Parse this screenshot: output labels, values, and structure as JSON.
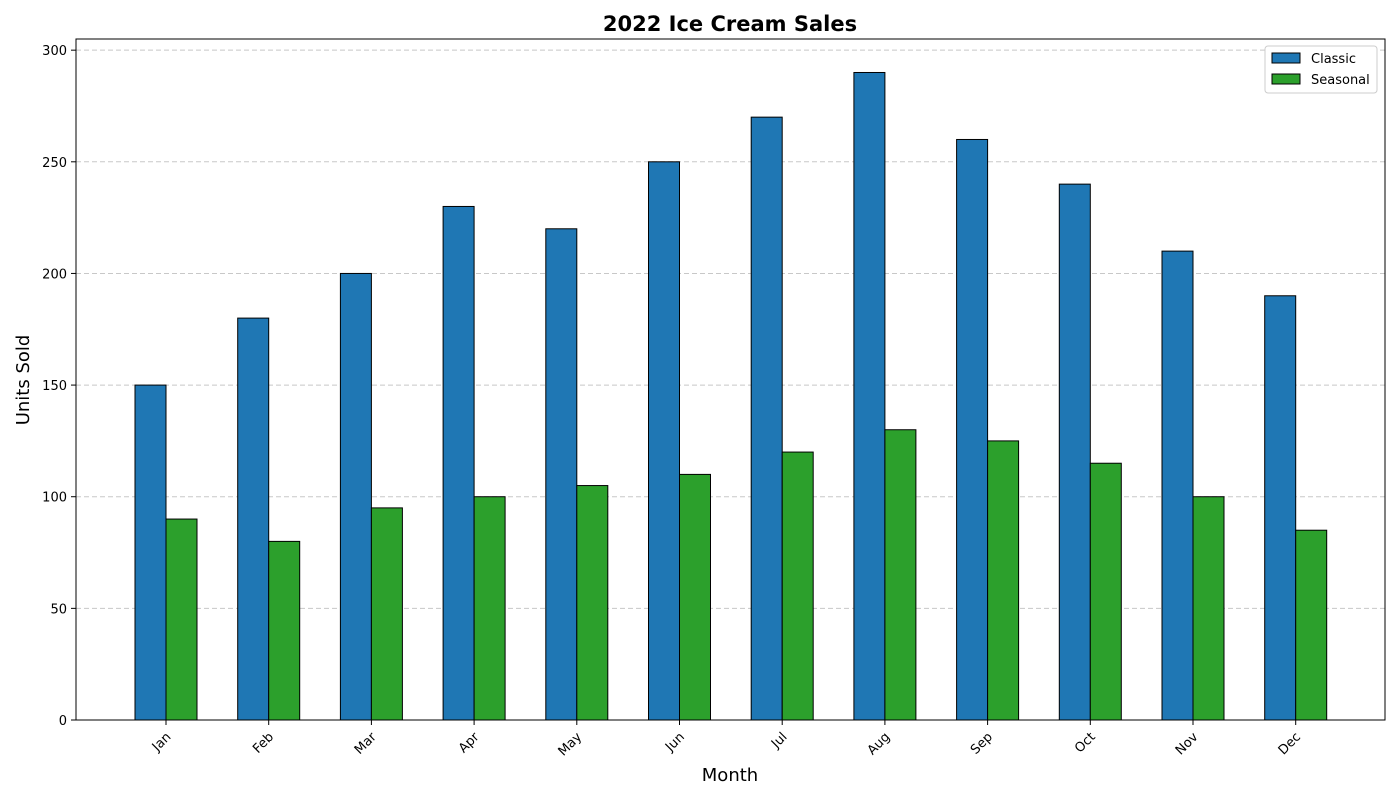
{
  "chart_data": {
    "type": "bar",
    "title": "2022 Ice Cream Sales",
    "xlabel": "Month",
    "ylabel": "Units Sold",
    "categories": [
      "Jan",
      "Feb",
      "Mar",
      "Apr",
      "May",
      "Jun",
      "Jul",
      "Aug",
      "Sep",
      "Oct",
      "Nov",
      "Dec"
    ],
    "series": [
      {
        "name": "Classic",
        "color": "#1f77b4",
        "values": [
          150,
          180,
          200,
          230,
          220,
          250,
          270,
          290,
          260,
          240,
          210,
          190
        ]
      },
      {
        "name": "Seasonal",
        "color": "#2ca02c",
        "values": [
          90,
          80,
          95,
          100,
          105,
          110,
          120,
          130,
          125,
          115,
          100,
          85
        ]
      }
    ],
    "ylim": [
      0,
      305
    ],
    "yticks": [
      0,
      50,
      100,
      150,
      200,
      250,
      300
    ],
    "grid": "y-dashed",
    "legend_position": "top-right"
  }
}
